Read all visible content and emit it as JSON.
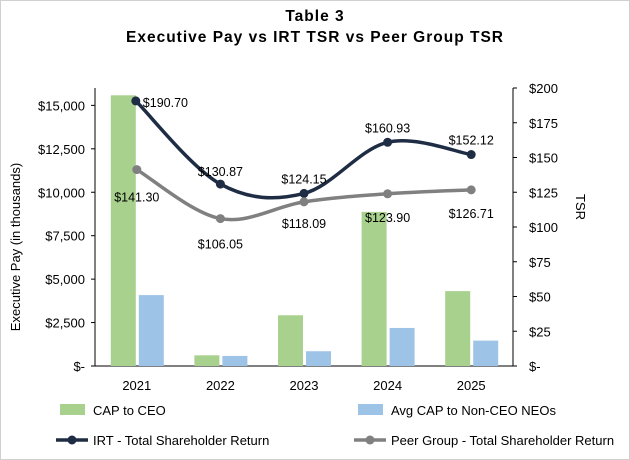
{
  "chart_data": {
    "type": "bar+line",
    "title_line1": "Table 3",
    "title_line2": "Executive Pay vs IRT TSR vs Peer Group TSR",
    "categories": [
      "2021",
      "2022",
      "2023",
      "2024",
      "2025"
    ],
    "ylabel": "Executive Pay (in thousands)",
    "y2label": "TSR",
    "ylim": [
      0,
      16000
    ],
    "y2lim": [
      0,
      200
    ],
    "yticks": [
      "$-",
      "$2,500",
      "$5,000",
      "$7,500",
      "$10,000",
      "$12,500",
      "$15,000"
    ],
    "ytick_values": [
      0,
      2500,
      5000,
      7500,
      10000,
      12500,
      15000
    ],
    "y2ticks": [
      "$-",
      "$25",
      "$50",
      "$75",
      "$100",
      "$125",
      "$150",
      "$175",
      "$200"
    ],
    "y2tick_values": [
      0,
      25,
      50,
      75,
      100,
      125,
      150,
      175,
      200
    ],
    "grid": false,
    "legend_position": "bottom",
    "bar_series": [
      {
        "name": "CAP to CEO",
        "color": "#a9d18e",
        "values": [
          15580,
          615,
          2920,
          8870,
          4310
        ]
      },
      {
        "name": "Avg CAP to Non-CEO NEOs",
        "color": "#9dc3e6",
        "values": [
          4080,
          580,
          850,
          2190,
          1460
        ]
      }
    ],
    "line_series": [
      {
        "name": "IRT - Total Shareholder Return",
        "color": "#1f2d44",
        "values": [
          190.7,
          130.87,
          124.15,
          160.93,
          152.12
        ],
        "labels": [
          "$190.70",
          "$130.87",
          "$124.15",
          "$160.93",
          "$152.12"
        ]
      },
      {
        "name": "Peer Group - Total Shareholder Return",
        "color": "#808080",
        "values": [
          141.3,
          106.05,
          118.09,
          123.9,
          126.71
        ],
        "labels": [
          "$141.30",
          "$106.05",
          "$118.09",
          "$123.90",
          "$126.71"
        ]
      }
    ]
  }
}
